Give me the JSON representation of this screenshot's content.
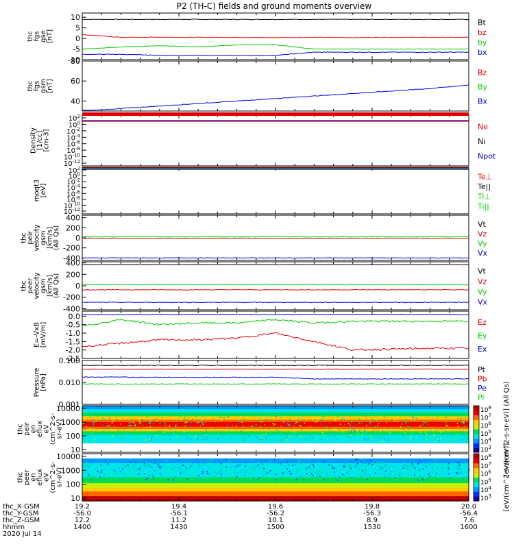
{
  "title": "P2 (TH-C) fields and ground moments overview",
  "colors": {
    "black": "#000000",
    "red": "#dd0000",
    "green": "#00cc00",
    "blue": "#0000cc",
    "spec_colorbar": [
      "#1a0099",
      "#0033ff",
      "#0099ff",
      "#00e5e5",
      "#00dd55",
      "#ccee00",
      "#ffcc00",
      "#ff6600",
      "#ee0000",
      "#bb0000"
    ]
  },
  "chart_data": [
    {
      "id": "fgs_gse",
      "type": "line",
      "ylabel": [
        "thc",
        "fgs",
        "gse",
        "[nT]"
      ],
      "ylim": [
        -10,
        12
      ],
      "yticks": [
        "10",
        "5",
        "0",
        "-5",
        "-10"
      ],
      "yticks_values": [
        10,
        5,
        0,
        -5,
        -10
      ],
      "series": [
        {
          "name": "Bt",
          "color": "black",
          "values": [
            9,
            9,
            9,
            9,
            9,
            9,
            9,
            9,
            9,
            9,
            9
          ]
        },
        {
          "name": "bz",
          "color": "red",
          "values": [
            1.8,
            0.5,
            0.6,
            0.5,
            0.5,
            0.4,
            0.5,
            0.4,
            0.5,
            0.5,
            0.5
          ]
        },
        {
          "name": "by",
          "color": "green",
          "values": [
            -5,
            -4,
            -3.5,
            -4,
            -3,
            -3,
            -5,
            -5,
            -5,
            -5,
            -5
          ]
        },
        {
          "name": "bx",
          "color": "blue",
          "values": [
            -7.5,
            -7.5,
            -8,
            -8,
            -8,
            -8,
            -6.5,
            -6.5,
            -6.5,
            -6.5,
            -6.5
          ]
        }
      ]
    },
    {
      "id": "fgs_gsm",
      "type": "line",
      "ylabel": [
        "thc",
        "fgs",
        "gsm",
        "[nT]"
      ],
      "ylim": [
        30,
        80
      ],
      "yticks": [
        "80",
        "60",
        "40"
      ],
      "yticks_values": [
        80,
        60,
        40
      ],
      "series": [
        {
          "name": "Bz",
          "color": "red",
          "values": []
        },
        {
          "name": "By",
          "color": "green",
          "values": []
        },
        {
          "name": "Bx",
          "color": "blue",
          "values": [
            30,
            32.5,
            35,
            37.5,
            40,
            42.5,
            45,
            47.5,
            50,
            52.5,
            56
          ]
        }
      ]
    },
    {
      "id": "density",
      "type": "line",
      "ylabel": [
        "Density",
        "[1/cc]",
        "[cm-3]"
      ],
      "yticks": [
        "10^2",
        "10^0",
        "10^-2",
        "10^-4",
        "10^-6",
        "10^-8",
        "10^-10",
        "10^-12"
      ],
      "series": [
        {
          "name": "Ne",
          "color": "red"
        },
        {
          "name": "Ni",
          "color": "black"
        },
        {
          "name": "Npot",
          "color": "blue"
        }
      ]
    },
    {
      "id": "temperature",
      "type": "line",
      "ylabel": [
        "moqt3",
        "[eV]"
      ],
      "yticks": [
        "10^2",
        "10^0",
        "10^-2",
        "10^-4",
        "10^-6",
        "10^-8",
        "10^-10",
        "10^-12"
      ],
      "series": [
        {
          "name": "Te⊥",
          "color": "red"
        },
        {
          "name": "Te||",
          "color": "black"
        },
        {
          "name": "Ti⊥",
          "color": "green"
        },
        {
          "name": "Ti||",
          "color": "green"
        }
      ]
    },
    {
      "id": "peir_velocity",
      "type": "line",
      "ylabel": [
        "thc",
        "peir",
        "velocity",
        "gsm",
        "[km/s]",
        "(All Qs)"
      ],
      "ylim": [
        -450,
        450
      ],
      "yticks": [
        "400",
        "200",
        "0",
        "-200",
        "-400"
      ],
      "yticks_values": [
        400,
        200,
        0,
        -200,
        -400
      ],
      "series": [
        {
          "name": "Vt",
          "color": "black",
          "values": []
        },
        {
          "name": "Vz",
          "color": "red",
          "values": [
            -10,
            -10,
            -10,
            -10,
            -10,
            -10,
            -10,
            -10,
            -10,
            -10,
            -10
          ]
        },
        {
          "name": "Vy",
          "color": "green",
          "values": [
            20,
            20,
            20,
            20,
            20,
            20,
            20,
            20,
            20,
            20,
            20
          ]
        },
        {
          "name": "Vx",
          "color": "blue",
          "values": [
            -400,
            -400,
            -400,
            -400,
            -400,
            -400,
            -400,
            -400,
            -400,
            -400,
            -400
          ]
        }
      ]
    },
    {
      "id": "peer_velocity",
      "type": "line",
      "ylabel": [
        "thc",
        "peer",
        "velocity",
        "gsm",
        "[km/s]",
        "(All Qs)"
      ],
      "ylim": [
        -420,
        420
      ],
      "yticks": [
        "400",
        "200",
        "0",
        "-200",
        "-400"
      ],
      "yticks_values": [
        400,
        200,
        0,
        -200,
        -400
      ],
      "series": [
        {
          "name": "Vt",
          "color": "black",
          "values": [
            370,
            370,
            370,
            370,
            370,
            370,
            370,
            370,
            370,
            370,
            370
          ]
        },
        {
          "name": "Vz",
          "color": "red",
          "values": [
            -70,
            -70,
            -70,
            -70,
            -70,
            -70,
            -70,
            -70,
            -70,
            -70,
            -70
          ]
        },
        {
          "name": "Vy",
          "color": "green",
          "values": [
            20,
            20,
            20,
            20,
            20,
            20,
            20,
            20,
            20,
            20,
            20
          ]
        },
        {
          "name": "Vx",
          "color": "blue",
          "values": [
            -290,
            -290,
            -290,
            -290,
            -290,
            -290,
            -290,
            -290,
            -290,
            -290,
            -290
          ]
        }
      ]
    },
    {
      "id": "efield",
      "type": "line",
      "ylabel": [
        "E=-VxB",
        "[mV/m]"
      ],
      "ylim": [
        -2.5,
        0.3
      ],
      "yticks": [
        "0.0",
        "-0.5",
        "-1.0",
        "-1.5",
        "-2.0",
        "-2.5"
      ],
      "yticks_values": [
        0.0,
        -0.5,
        -1.0,
        -1.5,
        -2.0,
        -2.5
      ],
      "series": [
        {
          "name": "Ez",
          "color": "red",
          "values": [
            -1.8,
            -1.6,
            -1.4,
            -1.4,
            -1.3,
            -1.0,
            -1.5,
            -2.0,
            -1.95,
            -1.9,
            -1.9
          ]
        },
        {
          "name": "Ey",
          "color": "green",
          "values": [
            -0.6,
            -0.2,
            -0.5,
            -0.4,
            -0.4,
            -0.2,
            -0.4,
            -0.3,
            -0.3,
            -0.3,
            -0.3
          ]
        },
        {
          "name": "Ex",
          "color": "blue",
          "values": [
            0.1,
            0.1,
            0.1,
            0.1,
            0.1,
            0.1,
            0.1,
            0.1,
            0.1,
            0.1,
            0.1
          ]
        }
      ]
    },
    {
      "id": "pressure",
      "type": "line",
      "ylabel": [
        "Pressure",
        "[nPa]"
      ],
      "ylim": [
        0.001,
        0.1
      ],
      "yscale": "log",
      "yticks": [
        "0.100",
        "0.010",
        "0.001"
      ],
      "yticks_values": [
        0.1,
        0.01,
        0.001
      ],
      "series": [
        {
          "name": "Pt",
          "color": "black",
          "values": [
            0.06,
            0.06,
            0.06,
            0.06,
            0.06,
            0.06,
            0.06,
            0.06,
            0.06,
            0.06,
            0.06
          ]
        },
        {
          "name": "Pb",
          "color": "red",
          "values": [
            0.04,
            0.04,
            0.04,
            0.04,
            0.04,
            0.04,
            0.04,
            0.04,
            0.04,
            0.04,
            0.04
          ]
        },
        {
          "name": "Pe",
          "color": "blue",
          "values": [
            0.0175,
            0.0175,
            0.017,
            0.017,
            0.017,
            0.017,
            0.0145,
            0.0145,
            0.0145,
            0.0145,
            0.0145
          ]
        },
        {
          "name": "Pi",
          "color": "green",
          "values": [
            0.0085,
            0.0085,
            0.0085,
            0.0085,
            0.0085,
            0.0085,
            0.0085,
            0.0085,
            0.0085,
            0.0085,
            0.0085
          ]
        }
      ]
    },
    {
      "id": "peir_spec",
      "type": "heatmap",
      "ylabel": [
        "thc",
        "peir",
        "en",
        "eflux",
        "eV",
        "(cm^2-s-",
        "sr-eV)"
      ],
      "yscale": "log",
      "yticks": [
        "10000",
        "1000",
        "100",
        "10"
      ],
      "yticks_values": [
        10000,
        1000,
        100,
        10
      ],
      "colorbar_ticks": [
        "10^8",
        "10^7",
        "10^6",
        "10^5",
        "10^4",
        "10^3"
      ],
      "colorbar_label": "[eV/(cm^2-s-sr-eV)] (All Qs)"
    },
    {
      "id": "peer_spec",
      "type": "heatmap",
      "ylabel": [
        "thc",
        "peer",
        "en",
        "eflux",
        "eV",
        "(cm^2-s-",
        "sr-eV)"
      ],
      "yscale": "log",
      "yticks": [
        "10000",
        "1000",
        "100",
        "10"
      ],
      "yticks_values": [
        10000,
        1000,
        100,
        10
      ],
      "colorbar_ticks": [
        "10^8",
        "10^7",
        "10^6",
        "10^5",
        "10^4",
        "10^3"
      ],
      "colorbar_label": "[eV/(cm^2-s-sr-eV)]"
    }
  ],
  "xaxis": {
    "rows": [
      {
        "label": "thc_X-GSM",
        "values": [
          "19.2",
          "19.4",
          "19.6",
          "19.8",
          "20.0"
        ]
      },
      {
        "label": "thc_Y-GSM",
        "values": [
          "-56.0",
          "-56.1",
          "-56.2",
          "-56.3",
          "-56.4"
        ]
      },
      {
        "label": "thc_Z-GSM",
        "values": [
          "12.2",
          "11.2",
          "10.1",
          "8.9",
          "7.6"
        ]
      },
      {
        "label": "hhmm",
        "values": [
          "1400",
          "1430",
          "1500",
          "1530",
          "1600"
        ]
      }
    ],
    "date": "2020 Jul 14"
  }
}
